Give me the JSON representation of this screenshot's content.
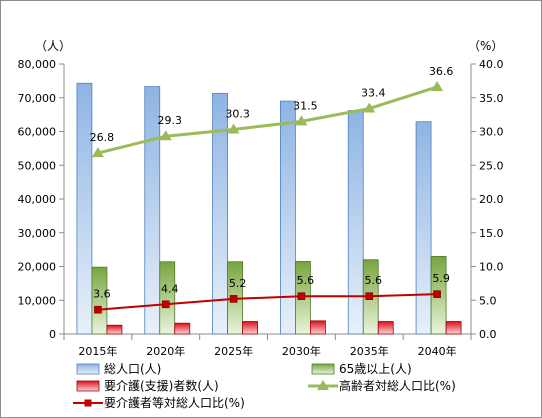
{
  "chart_data": {
    "type": "bar",
    "categories": [
      "2015年",
      "2020年",
      "2025年",
      "2030年",
      "2035年",
      "2040年"
    ],
    "y_left_unit": "（人）",
    "y_right_unit": "（%）",
    "y_left_ticks": [
      "0",
      "10,000",
      "20,000",
      "30,000",
      "40,000",
      "50,000",
      "60,000",
      "70,000",
      "80,000"
    ],
    "y_right_ticks": [
      "0.0",
      "5.0",
      "10.0",
      "15.0",
      "20.0",
      "25.0",
      "30.0",
      "35.0",
      "40.0"
    ],
    "ylim_left": [
      0,
      80000
    ],
    "ylim_right": [
      0,
      40
    ],
    "bar_series": [
      {
        "name": "総人口(人)",
        "values": [
          74300,
          73300,
          71300,
          69000,
          66200,
          62900
        ],
        "color": "#8eb4e3"
      },
      {
        "name": "65歳以上(人)",
        "values": [
          19800,
          21400,
          21400,
          21500,
          22000,
          23000
        ],
        "color": "#77a53e"
      },
      {
        "name": "要介護(支援)者数(人)",
        "values": [
          2600,
          3200,
          3700,
          3900,
          3700,
          3700
        ],
        "color": "#e0101c"
      }
    ],
    "line_series": [
      {
        "name": "高齢者対総人口比(%)",
        "values": [
          26.8,
          29.3,
          30.3,
          31.5,
          33.4,
          36.6
        ],
        "labels": [
          "26.8",
          "29.3",
          "30.3",
          "31.5",
          "33.4",
          "36.6"
        ],
        "color": "#9bbb59",
        "marker": "triangle"
      },
      {
        "name": "要介護者等対総人口比(%)",
        "values": [
          3.6,
          4.4,
          5.2,
          5.6,
          5.6,
          5.9
        ],
        "labels": [
          "3.6",
          "4.4",
          "5.2",
          "5.6",
          "5.6",
          "5.9"
        ],
        "color": "#c00000",
        "marker": "square"
      }
    ],
    "grid": false,
    "legend_position": "bottom"
  }
}
